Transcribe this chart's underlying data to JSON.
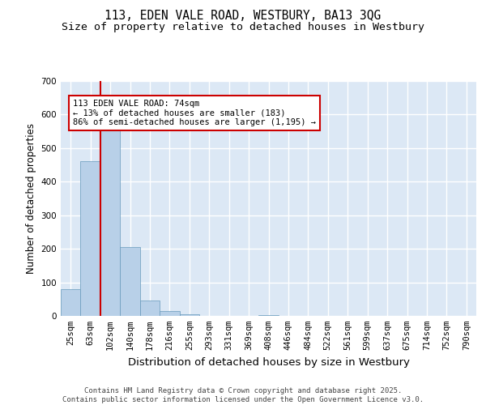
{
  "title1": "113, EDEN VALE ROAD, WESTBURY, BA13 3QG",
  "title2": "Size of property relative to detached houses in Westbury",
  "xlabel": "Distribution of detached houses by size in Westbury",
  "ylabel": "Number of detached properties",
  "categories": [
    "25sqm",
    "63sqm",
    "102sqm",
    "140sqm",
    "178sqm",
    "216sqm",
    "255sqm",
    "293sqm",
    "331sqm",
    "369sqm",
    "408sqm",
    "446sqm",
    "484sqm",
    "522sqm",
    "561sqm",
    "599sqm",
    "637sqm",
    "675sqm",
    "714sqm",
    "752sqm",
    "790sqm"
  ],
  "values": [
    80,
    460,
    570,
    205,
    45,
    15,
    5,
    0,
    0,
    0,
    3,
    0,
    0,
    0,
    0,
    0,
    0,
    0,
    0,
    0,
    0
  ],
  "bar_color": "#b8d0e8",
  "bar_edge_color": "#6699bb",
  "background_color": "#dce8f5",
  "grid_color": "#ffffff",
  "vline_color": "#cc0000",
  "annotation_text": "113 EDEN VALE ROAD: 74sqm\n← 13% of detached houses are smaller (183)\n86% of semi-detached houses are larger (1,195) →",
  "annotation_box_color": "#cc0000",
  "ylim": [
    0,
    700
  ],
  "yticks": [
    0,
    100,
    200,
    300,
    400,
    500,
    600,
    700
  ],
  "footer": "Contains HM Land Registry data © Crown copyright and database right 2025.\nContains public sector information licensed under the Open Government Licence v3.0.",
  "title_fontsize": 10.5,
  "subtitle_fontsize": 9.5,
  "axis_label_fontsize": 8.5,
  "tick_fontsize": 7.5,
  "footer_fontsize": 6.5
}
